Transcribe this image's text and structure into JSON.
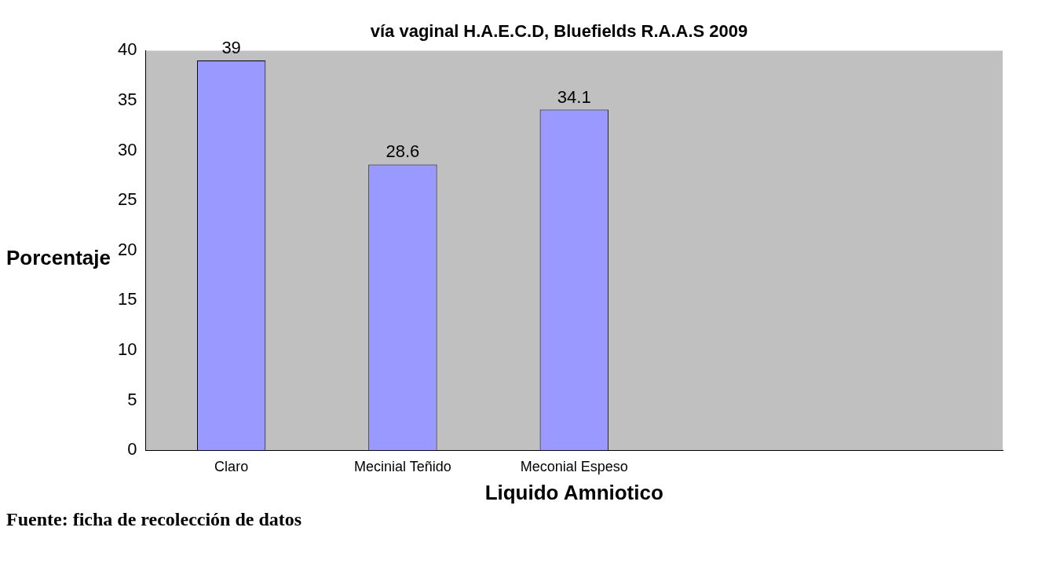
{
  "chart_data": {
    "type": "bar",
    "title": "vía vaginal H.A.E.C.D, Bluefields R.A.A.S 2009",
    "xlabel": "Liquido Amniotico",
    "ylabel": "Porcentaje",
    "categories": [
      "Claro",
      "Mecinial Teñido",
      "Meconial Espeso",
      null,
      null
    ],
    "values": [
      39,
      28.6,
      34.1,
      null,
      null
    ],
    "color": "#9999ff",
    "ylim": [
      0,
      40
    ],
    "yticks": [
      0,
      5,
      10,
      15,
      20,
      25,
      30,
      35,
      40
    ],
    "data_labels": true,
    "grid": false,
    "legend": false,
    "annotations": [
      "Fuente: ficha de recolección de datos"
    ]
  }
}
